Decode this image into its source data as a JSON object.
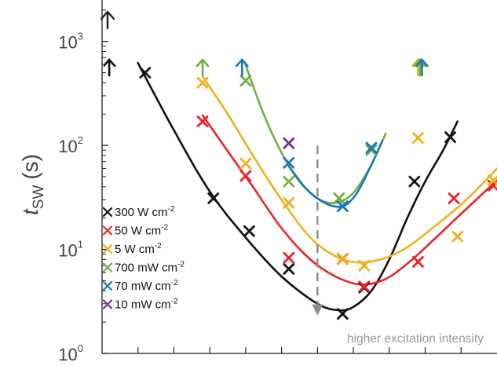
{
  "chart_data": {
    "type": "scatter",
    "title": "",
    "ylabel": {
      "main": "t",
      "sub": "SW",
      "unit": "(s)"
    },
    "xlabel": "",
    "yscale": "log",
    "ylim": [
      1,
      2500
    ],
    "xlim": [
      0,
      11
    ],
    "y_ticks": [
      {
        "value": 1,
        "base": "10",
        "exp": "0"
      },
      {
        "value": 10,
        "base": "10",
        "exp": "1"
      },
      {
        "value": 100,
        "base": "10",
        "exp": "2"
      },
      {
        "value": 1000,
        "base": "10",
        "exp": "3"
      }
    ],
    "annotation": "higher excitation intensity",
    "annotation_arrow_x": 6.0,
    "annotation_arrow_y": [
      100,
      2.4
    ],
    "series": [
      {
        "name": "300 W cm",
        "unit_exp": "-2",
        "color": "#111111",
        "points": [
          [
            1.2,
            500
          ],
          [
            3.1,
            31
          ],
          [
            4.1,
            15
          ],
          [
            5.2,
            6.5
          ],
          [
            6.7,
            2.4
          ],
          [
            7.3,
            4.3
          ],
          [
            8.7,
            45
          ],
          [
            9.7,
            120
          ]
        ],
        "above_range": [
          [
            0.2
          ]
        ],
        "fit": [
          [
            1.0,
            620
          ],
          [
            2.0,
            140
          ],
          [
            3.0,
            36
          ],
          [
            4.0,
            13
          ],
          [
            5.0,
            5.5
          ],
          [
            6.0,
            3.0
          ],
          [
            6.6,
            2.6
          ],
          [
            7.0,
            2.8
          ],
          [
            7.5,
            4.0
          ],
          [
            8.0,
            8
          ],
          [
            8.5,
            20
          ],
          [
            9.0,
            45
          ],
          [
            9.5,
            90
          ],
          [
            9.9,
            170
          ]
        ]
      },
      {
        "name": "50 W cm",
        "unit_exp": "-2",
        "color": "#e8242a",
        "points": [
          [
            2.8,
            170
          ],
          [
            4.0,
            51
          ],
          [
            5.2,
            8.3
          ],
          [
            6.7,
            8.1
          ],
          [
            7.3,
            4.4
          ],
          [
            8.8,
            7.6
          ],
          [
            9.8,
            31
          ],
          [
            10.9,
            41
          ]
        ],
        "fit": [
          [
            2.8,
            195
          ],
          [
            3.5,
            88
          ],
          [
            4.2,
            40
          ],
          [
            5.0,
            16
          ],
          [
            5.8,
            8
          ],
          [
            6.5,
            5.5
          ],
          [
            7.2,
            4.6
          ],
          [
            7.9,
            5.2
          ],
          [
            8.6,
            7.8
          ],
          [
            9.3,
            13
          ],
          [
            10.0,
            22
          ],
          [
            10.7,
            37
          ],
          [
            11.0,
            46
          ]
        ]
      },
      {
        "name": "5 W cm",
        "unit_exp": "-2",
        "color": "#f0b21b",
        "points": [
          [
            2.8,
            400
          ],
          [
            4.0,
            67
          ],
          [
            5.2,
            28
          ],
          [
            6.7,
            8.2
          ],
          [
            7.3,
            7.0
          ],
          [
            8.8,
            118
          ],
          [
            9.9,
            13.3
          ],
          [
            10.9,
            46
          ]
        ],
        "above_range": [
          [
            8.8
          ]
        ],
        "fit": [
          [
            2.8,
            460
          ],
          [
            3.5,
            200
          ],
          [
            4.2,
            80
          ],
          [
            5.0,
            30
          ],
          [
            5.8,
            13
          ],
          [
            6.5,
            8.6
          ],
          [
            7.1,
            7.5
          ],
          [
            7.8,
            8.1
          ],
          [
            8.5,
            10.5
          ],
          [
            9.2,
            16
          ],
          [
            10.0,
            27
          ],
          [
            10.6,
            43
          ],
          [
            11.0,
            60
          ]
        ]
      },
      {
        "name": "700 mW cm",
        "unit_exp": "-2",
        "color": "#6db33f",
        "points": [
          [
            4.0,
            420
          ],
          [
            5.2,
            45
          ],
          [
            6.6,
            31
          ],
          [
            7.5,
            90
          ]
        ],
        "above_range": [
          [
            2.8
          ],
          [
            8.8
          ]
        ],
        "fit": [
          [
            4.0,
            590
          ],
          [
            4.5,
            200
          ],
          [
            5.0,
            85
          ],
          [
            5.5,
            45
          ],
          [
            6.0,
            31
          ],
          [
            6.5,
            28
          ],
          [
            7.0,
            35
          ],
          [
            7.5,
            65
          ],
          [
            7.9,
            130
          ]
        ]
      },
      {
        "name": "70 mW cm",
        "unit_exp": "-2",
        "color": "#1a77bd",
        "points": [
          [
            5.2,
            68
          ],
          [
            6.7,
            26
          ],
          [
            7.5,
            95
          ]
        ],
        "above_range": [
          [
            3.9
          ],
          [
            8.8
          ]
        ],
        "fit": [
          [
            5.2,
            63
          ],
          [
            5.7,
            38
          ],
          [
            6.2,
            28
          ],
          [
            6.7,
            26
          ],
          [
            7.1,
            35
          ],
          [
            7.5,
            65
          ],
          [
            7.8,
            110
          ]
        ]
      },
      {
        "name": "10 mW cm",
        "unit_exp": "-2",
        "color": "#7b2c91",
        "points": [
          [
            5.2,
            105
          ]
        ]
      }
    ],
    "legend_position": "lower-left"
  }
}
